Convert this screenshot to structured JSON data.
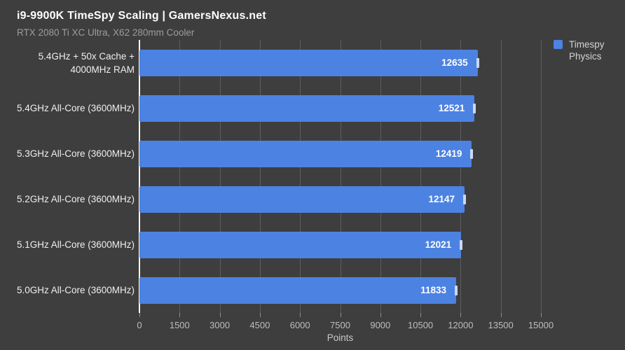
{
  "header": {
    "title": "i9-9900K TimeSpy Scaling | GamersNexus.net",
    "subtitle": "RTX 2080 Ti XC Ultra, X62 280mm Cooler"
  },
  "legend": {
    "series_label_line1": "Timespy",
    "series_label_line2": "Physics"
  },
  "colors": {
    "background": "#3e3e3e",
    "bar": "#4c82e2",
    "gridline": "#5d5d5d",
    "zero_axis": "#ffffff",
    "error_tick": "#ccd8f3",
    "value_label": "#ffffff",
    "category_label": "#efefef",
    "tick_label": "#bdbdbd"
  },
  "chart_data": {
    "type": "bar",
    "orientation": "horizontal",
    "title": "i9-9900K TimeSpy Scaling | GamersNexus.net",
    "subtitle": "RTX 2080 Ti XC Ultra, X62 280mm Cooler",
    "categories": [
      "5.4GHz + 50x Cache + 4000MHz RAM",
      "5.4GHz All-Core (3600MHz)",
      "5.3GHz All-Core (3600MHz)",
      "5.2GHz All-Core (3600MHz)",
      "5.1GHz All-Core (3600MHz)",
      "5.0GHz All-Core (3600MHz)"
    ],
    "series": [
      {
        "name": "Timespy Physics",
        "values": [
          12635,
          12521,
          12419,
          12147,
          12021,
          11833
        ]
      }
    ],
    "xlabel": "Points",
    "xlim": [
      0,
      15000
    ],
    "x_ticks": [
      0,
      1500,
      3000,
      4500,
      6000,
      7500,
      9000,
      10500,
      12000,
      13500,
      15000
    ],
    "grid": true,
    "legend_position": "top-right",
    "error_bars": true,
    "value_labels": "inside-end"
  }
}
